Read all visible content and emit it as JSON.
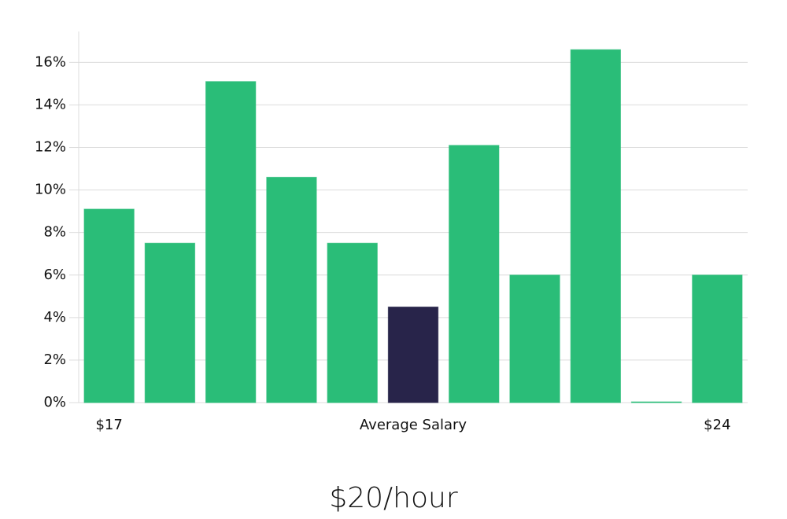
{
  "chart_data": {
    "type": "bar",
    "annotation": "$20/hour",
    "categories": [
      "$17",
      null,
      null,
      null,
      null,
      "Average Salary",
      null,
      null,
      null,
      null,
      "$24"
    ],
    "values": [
      9.1,
      7.5,
      15.1,
      10.6,
      7.5,
      4.5,
      12.1,
      6.0,
      16.6,
      0,
      6.0
    ],
    "colors": [
      "#2abd78",
      "#2abd78",
      "#2abd78",
      "#2abd78",
      "#2abd78",
      "#28244a",
      "#2abd78",
      "#2abd78",
      "#2abd78",
      "#2abd78",
      "#2abd78"
    ],
    "ylim": [
      0,
      17.4
    ],
    "yticks": [
      {
        "value": 0,
        "label": "0%"
      },
      {
        "value": 2,
        "label": "2%"
      },
      {
        "value": 4,
        "label": "4%"
      },
      {
        "value": 6,
        "label": "6%"
      },
      {
        "value": 8,
        "label": "8%"
      },
      {
        "value": 10,
        "label": "10%"
      },
      {
        "value": 12,
        "label": "12%"
      },
      {
        "value": 14,
        "label": "14%"
      },
      {
        "value": 16,
        "label": "16%"
      }
    ],
    "grid": true
  }
}
